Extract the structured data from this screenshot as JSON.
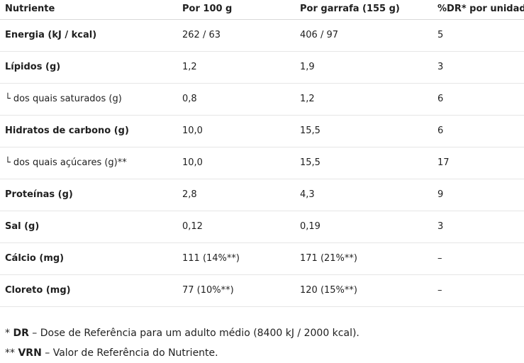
{
  "header": {
    "col1": "Nutriente",
    "col2": "Por 100 g",
    "col3": "Por garrafa (155 g)",
    "col4": "%DR* por unidade"
  },
  "rows": [
    {
      "name": "Energia (kJ / kcal)",
      "per100": "262 / 63",
      "perBottle": "406 / 97",
      "dr": "5",
      "bold": true,
      "sub": false
    },
    {
      "name": "Lípidos (g)",
      "per100": "1,2",
      "perBottle": "1,9",
      "dr": "3",
      "bold": true,
      "sub": false
    },
    {
      "name": "dos quais saturados (g)",
      "per100": "0,8",
      "perBottle": "1,2",
      "dr": "6",
      "bold": false,
      "sub": true
    },
    {
      "name": "Hidratos de carbono (g)",
      "per100": "10,0",
      "perBottle": "15,5",
      "dr": "6",
      "bold": true,
      "sub": false
    },
    {
      "name": "dos quais açúcares (g)**",
      "per100": "10,0",
      "perBottle": "15,5",
      "dr": "17",
      "bold": false,
      "sub": true
    },
    {
      "name": "Proteínas (g)",
      "per100": "2,8",
      "perBottle": "4,3",
      "dr": "9",
      "bold": true,
      "sub": false
    },
    {
      "name": "Sal (g)",
      "per100": "0,12",
      "perBottle": "0,19",
      "dr": "3",
      "bold": true,
      "sub": false
    },
    {
      "name": "Cálcio (mg)",
      "per100": "111 (14%**)",
      "perBottle": "171 (21%**)",
      "dr": "–",
      "bold": true,
      "sub": false
    },
    {
      "name": "Cloreto (mg)",
      "per100": "77 (10%**)",
      "perBottle": "120 (15%**)",
      "dr": "–",
      "bold": true,
      "sub": false
    }
  ],
  "sub_marker": "└",
  "notes": [
    {
      "prefix": "* ",
      "abbr": "DR",
      "text": " – Dose de Referência para um adulto médio (8400 kJ / 2000 kcal)."
    },
    {
      "prefix": "** ",
      "abbr": "VRN",
      "text": " – Valor de Referência do Nutriente."
    }
  ]
}
